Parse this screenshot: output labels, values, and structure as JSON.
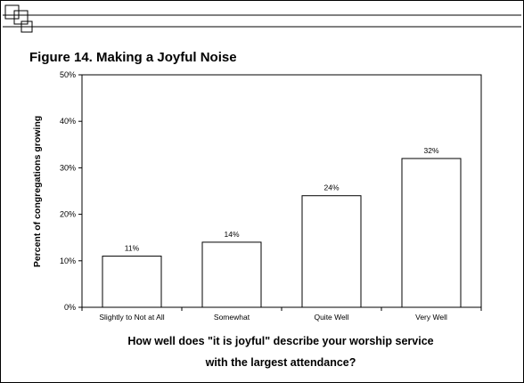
{
  "chart_data": {
    "type": "bar",
    "title": "Figure 14. Making a Joyful Noise",
    "categories": [
      "Slightly to Not at All",
      "Somewhat",
      "Quite Well",
      "Very Well"
    ],
    "values": [
      11,
      14,
      24,
      32
    ],
    "data_labels": [
      "11%",
      "14%",
      "24%",
      "32%"
    ],
    "ylabel": "Percent of congregations growing",
    "xlabel_line1": "How well does \"it is joyful\" describe your worship service",
    "xlabel_line2": "with the largest attendance?",
    "ylim": [
      0,
      50
    ],
    "yticks": [
      0,
      10,
      20,
      30,
      40,
      50
    ],
    "ytick_labels": [
      "0%",
      "10%",
      "20%",
      "30%",
      "40%",
      "50%"
    ],
    "grid": false,
    "bar_fill": "#ffffff",
    "bar_stroke": "#000000"
  }
}
